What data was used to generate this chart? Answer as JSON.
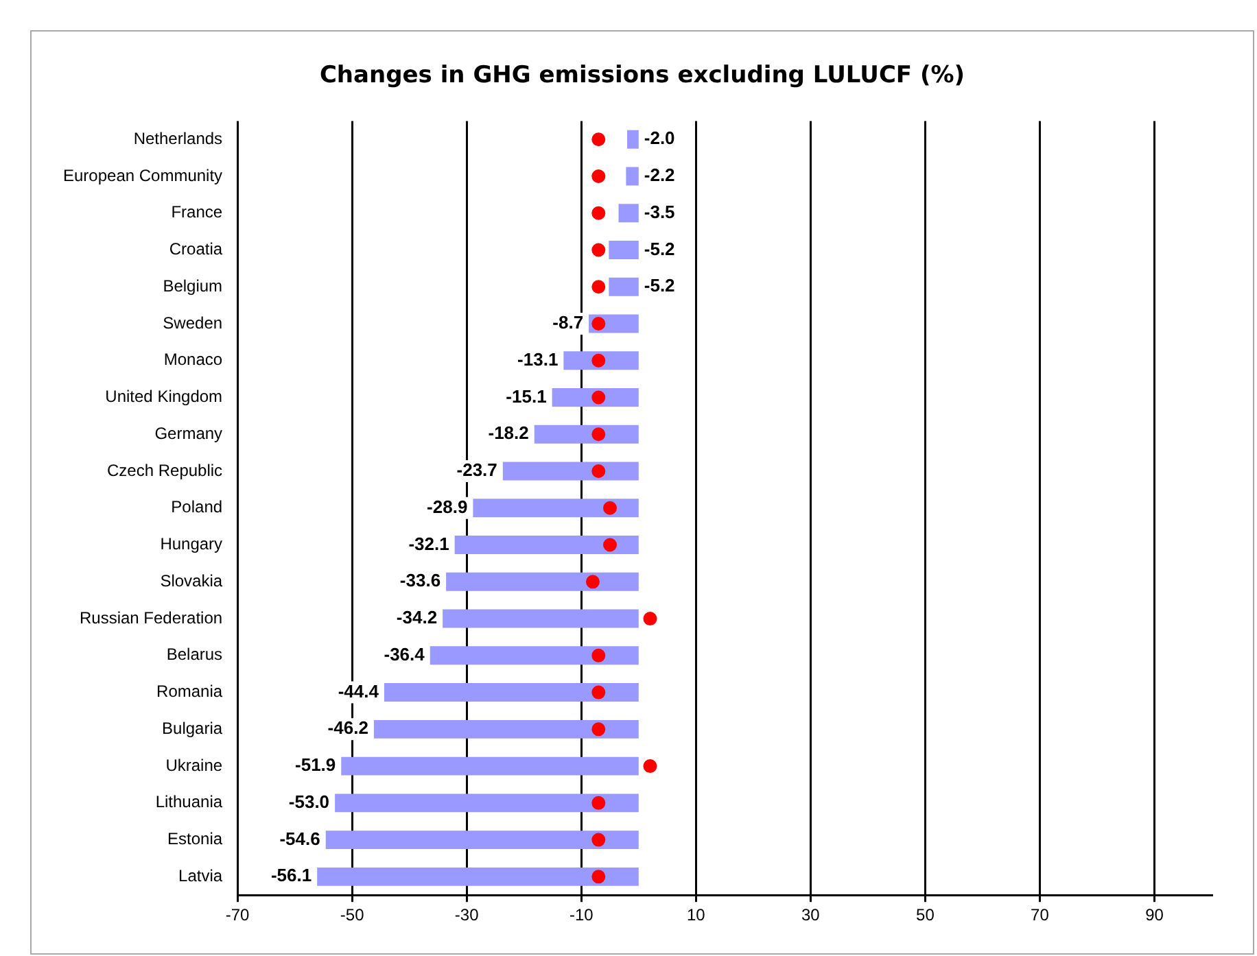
{
  "chart_data": {
    "type": "bar",
    "orientation": "horizontal",
    "title": "Changes in GHG emissions excluding LULUCF (%)",
    "categories": [
      "Netherlands",
      "European Community",
      "France",
      "Croatia",
      "Belgium",
      "Sweden",
      "Monaco",
      "United Kingdom",
      "Germany",
      "Czech Republic",
      "Poland",
      "Hungary",
      "Slovakia",
      "Russian Federation",
      "Belarus",
      "Romania",
      "Bulgaria",
      "Ukraine",
      "Lithuania",
      "Estonia",
      "Latvia"
    ],
    "series": [
      {
        "color": "#9999ff",
        "values": [
          -2.0,
          -2.2,
          -3.5,
          -5.2,
          -5.2,
          -8.7,
          -13.1,
          -15.1,
          -18.2,
          -23.7,
          -28.9,
          -32.1,
          -33.6,
          -34.2,
          -36.4,
          -44.4,
          -46.2,
          -51.9,
          -53.0,
          -54.6,
          -56.1
        ],
        "value_labels": [
          "-2.0",
          "-2.2",
          "-3.5",
          "-5.2",
          "-5.2",
          "-8.7",
          "-13.1",
          "-15.1",
          "-18.2",
          "-23.7",
          "-28.9",
          "-32.1",
          "-33.6",
          "-34.2",
          "-36.4",
          "-44.4",
          "-46.2",
          "-51.9",
          "-53.0",
          "-54.6",
          "-56.1"
        ]
      },
      {
        "type": "scatter",
        "color": "#ff0000",
        "marker": "circle",
        "x": [
          "Netherlands",
          "European Community",
          "France",
          "Croatia",
          "Belgium",
          "Sweden",
          "Monaco",
          "United Kingdom",
          "Germany",
          "Czech Republic",
          "Poland",
          "Hungary",
          "Slovakia",
          "Russian Federation",
          "Belarus",
          "Romania",
          "Bulgaria",
          "Ukraine",
          "Lithuania",
          "Estonia",
          "Latvia"
        ],
        "values": [
          -7,
          -7,
          -7,
          -7,
          -7,
          -7,
          -7,
          -7,
          -7,
          -7,
          -5,
          -5,
          -8,
          2,
          -7,
          -7,
          -7,
          2,
          -7,
          -7,
          -7
        ]
      }
    ],
    "xlim": [
      -70,
      100
    ],
    "xticks": [
      -70,
      -50,
      -30,
      -10,
      10,
      30,
      50,
      70,
      90
    ],
    "grid": "x",
    "legend": false
  }
}
